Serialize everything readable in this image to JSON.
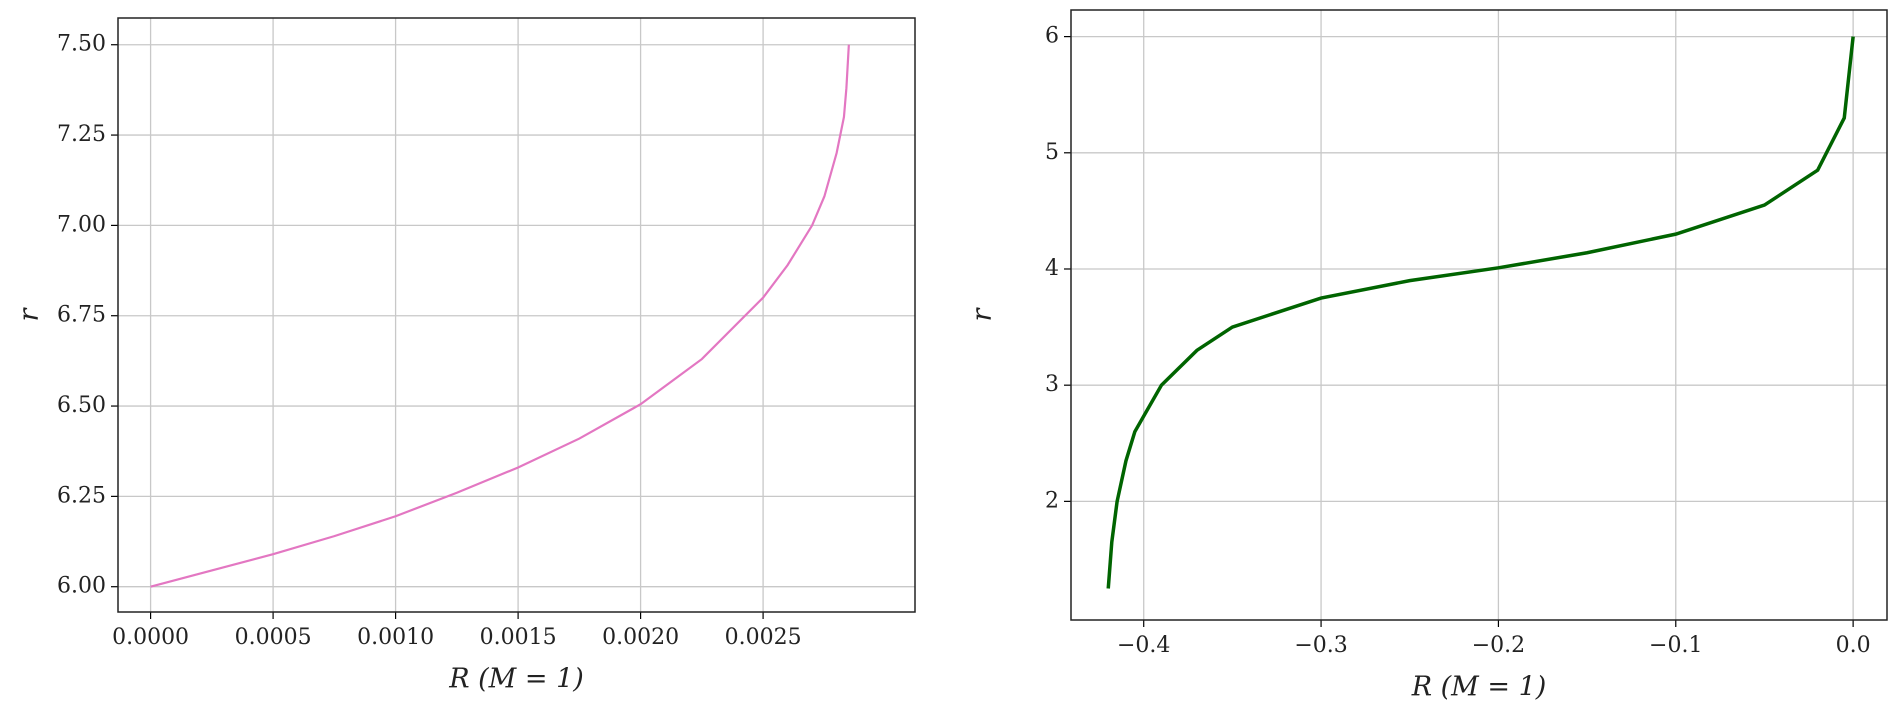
{
  "chart_data": [
    {
      "type": "line",
      "xlabel": "R (M = 1)",
      "ylabel": "r",
      "color": "#e377c2",
      "grid": true,
      "x": [
        0,
        0.00025,
        0.0005,
        0.00075,
        0.001,
        0.00125,
        0.0015,
        0.00175,
        0.002,
        0.00225,
        0.0025,
        0.0026,
        0.0027,
        0.00275,
        0.0028,
        0.00283,
        0.00284,
        0.00285
      ],
      "values": [
        6.0,
        6.045,
        6.09,
        6.14,
        6.195,
        6.26,
        6.33,
        6.41,
        6.505,
        6.63,
        6.8,
        6.89,
        7.0,
        7.08,
        7.2,
        7.3,
        7.38,
        7.5
      ],
      "xlim": [
        -0.000133,
        0.00312
      ],
      "ylim": [
        5.93,
        7.574
      ],
      "xticks": [
        {
          "value": 0,
          "label": "0.0000"
        },
        {
          "value": 0.0005,
          "label": "0.0005"
        },
        {
          "value": 0.001,
          "label": "0.0010"
        },
        {
          "value": 0.0015,
          "label": "0.0015"
        },
        {
          "value": 0.002,
          "label": "0.0020"
        },
        {
          "value": 0.0025,
          "label": "0.0025"
        }
      ],
      "yticks": [
        {
          "value": 6,
          "label": "6.00"
        },
        6.25,
        {
          "value": 6.5,
          "label": "6.50"
        },
        6.75,
        {
          "value": 7,
          "label": "7.00"
        },
        7.25,
        {
          "value": 7.5,
          "label": "7.50"
        }
      ]
    },
    {
      "type": "line",
      "xlabel": "R (M = 1)",
      "ylabel": "r",
      "color": "#006400",
      "grid": true,
      "x": [
        -0.42,
        -0.418,
        -0.415,
        -0.41,
        -0.405,
        -0.39,
        -0.37,
        -0.35,
        -0.3,
        -0.25,
        -0.2,
        -0.15,
        -0.1,
        -0.05,
        -0.02,
        -0.005,
        0
      ],
      "values": [
        1.25,
        1.65,
        2.0,
        2.35,
        2.6,
        3.0,
        3.3,
        3.5,
        3.75,
        3.9,
        4.01,
        4.14,
        4.3,
        4.55,
        4.85,
        5.3,
        6.0
      ],
      "xlim": [
        -0.441,
        0.0191
      ],
      "ylim": [
        0.979,
        6.229
      ],
      "xticks": [
        {
          "value": -0.4,
          "label": "−0.4"
        },
        {
          "value": -0.3,
          "label": "−0.3"
        },
        {
          "value": -0.2,
          "label": "−0.2"
        },
        {
          "value": -0.1,
          "label": "−0.1"
        },
        {
          "value": 0,
          "label": "0.0"
        }
      ],
      "yticks": [
        2,
        3,
        4,
        5,
        6
      ]
    }
  ]
}
